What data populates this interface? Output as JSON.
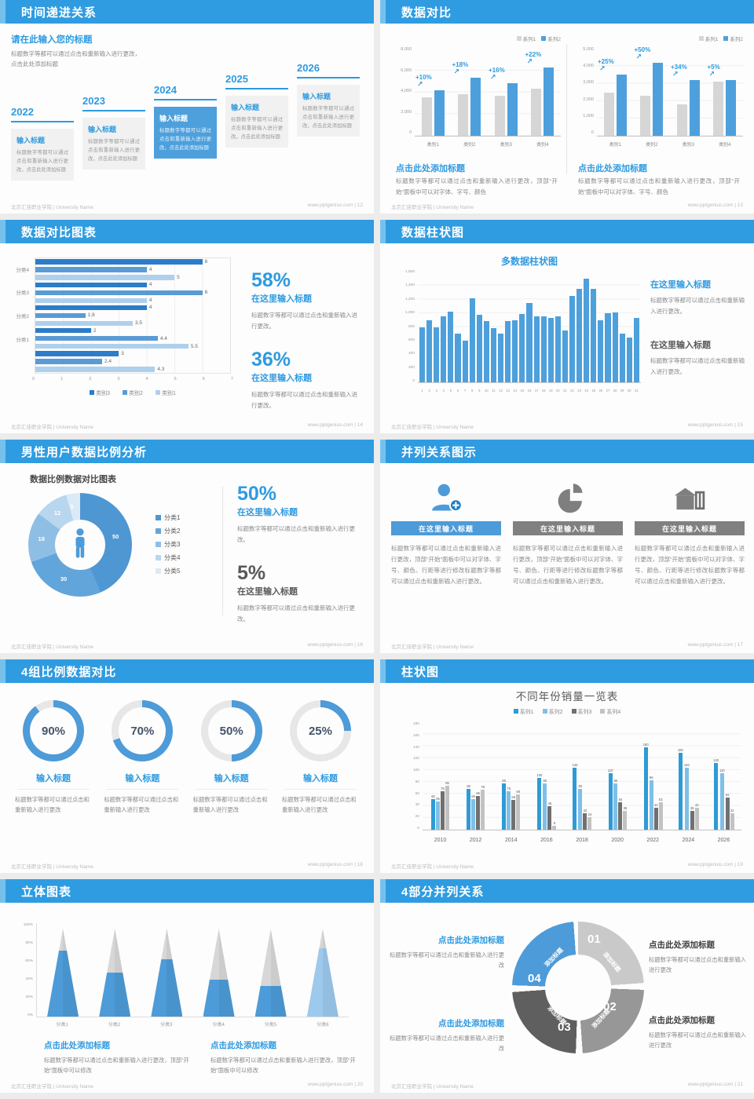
{
  "footer": {
    "left": "北京汇佳职业学院 | University Name",
    "url": "www.pptgenius.com",
    "sep": " | "
  },
  "colors": {
    "header_blue": "#2f9ce1",
    "accent_light": "#76c1ec",
    "chart_blue": "#4da0dc",
    "heading_blue": "#2e9ae0",
    "gray_bar": "#d6d6d6",
    "text_gray": "#8a8a8a",
    "text_dark": "#595959"
  },
  "slides": [
    {
      "page": "12",
      "title": "时间递进关系",
      "heading": "请在此输入您的标题",
      "desc": "标题数字等都可以通过点击和重新输入进行更改，点击此处添加标题",
      "years": [
        "2022",
        "2023",
        "2024",
        "2025",
        "2026"
      ],
      "item_title": "输入标题",
      "item_body": "标题数字等都可以通过点击和重新输入进行更改，点击此处添加标题"
    },
    {
      "page": "13",
      "title": "数据对比",
      "caption_heading": "点击此处添加标题",
      "caption_body": "标题数字等都可以通过点击和重新输入进行更改，顶部“开始”面板中可以对字体、字号、颜色"
    },
    {
      "page": "14",
      "title": "数据对比图表",
      "stats": [
        {
          "value": "58%",
          "heading": "在这里输入标题",
          "body": "标题数字等都可以通过点击和重新输入进行更改。",
          "tone": "blue"
        },
        {
          "value": "36%",
          "heading": "在这里输入标题",
          "body": "标题数字等都可以通过点击和重新输入进行更改。",
          "tone": "blue"
        }
      ]
    },
    {
      "page": "15",
      "title": "数据柱状图",
      "blocks": [
        {
          "heading": "在这里输入标题",
          "body": "标题数字等都可以通过点击和重新输入进行更改。",
          "tone": "blue"
        },
        {
          "heading": "在这里输入标题",
          "body": "标题数字等都可以通过点击和重新输入进行更改。",
          "tone": "gray"
        }
      ]
    },
    {
      "page": "16",
      "title": "男性用户数据比例分析",
      "chart_title": "数据比例数据对比图表",
      "stats": [
        {
          "value": "50%",
          "heading": "在这里输入标题",
          "body": "标题数字等都可以通过点击和重新输入进行更改。",
          "tone": "blue"
        },
        {
          "value": "5%",
          "heading": "在这里输入标题",
          "body": "标题数字等都可以通过点击和重新输入进行更改。",
          "tone": "gray"
        }
      ]
    },
    {
      "page": "17",
      "title": "并列关系图示",
      "card_heading": "在这里输入标题",
      "card_body": "标题数字等都可以通过点击和重新输入进行更改，顶部“开始”面板中可以对字体、字号、颜色、行距等进行修改标题数字等都可以通过点击和重新输入进行更改。",
      "icons": [
        "person-add",
        "pie-3d",
        "building"
      ]
    },
    {
      "page": "18",
      "title": "4组比例数据对比",
      "item_heading": "输入标题",
      "item_body": "标题数字等都可以通过点击和重新输入进行更改"
    },
    {
      "page": "19",
      "title": "柱状图"
    },
    {
      "page": "20",
      "title": "立体图表",
      "blocks": [
        {
          "heading": "点击此处添加标题",
          "body": "标题数字等都可以通过点击和重新输入进行更改，顶部“开始”面板中可以修改"
        },
        {
          "heading": "点击此处添加标题",
          "body": "标题数字等都可以通过点击和重新输入进行更改，顶部“开始”面板中可以修改"
        }
      ]
    },
    {
      "page": "21",
      "title": "4部分并列关系",
      "blocks": [
        {
          "heading": "点击此处添加标题",
          "body": "标题数字等都可以通过点击和重新输入进行更改",
          "tone": "blue",
          "align": "right"
        },
        {
          "heading": "点击此处添加标题",
          "body": "标题数字等都可以通过点击和重新输入进行更改",
          "tone": "blue",
          "align": "right"
        },
        {
          "heading": "点击此处添加标题",
          "body": "标题数字等都可以通过点击和重新输入进行更改",
          "tone": "dark",
          "align": "left"
        },
        {
          "heading": "点击此处添加标题",
          "body": "标题数字等都可以通过点击和重新输入进行更改",
          "tone": "dark",
          "align": "left"
        }
      ]
    }
  ],
  "chart_data": [
    {
      "slide": "13-left",
      "type": "bar",
      "categories": [
        "类别1",
        "类别2",
        "类别3",
        "类别4"
      ],
      "series": [
        {
          "name": "系列1",
          "color": "#d6d6d6",
          "values": [
            3500,
            3800,
            3700,
            4300
          ]
        },
        {
          "name": "系列2",
          "color": "#4da0dc",
          "values": [
            4200,
            5300,
            4800,
            6300
          ]
        }
      ],
      "annotations": [
        "+10%",
        "+18%",
        "+16%",
        "+22%"
      ],
      "ylim": [
        0,
        8000
      ],
      "yticks": [
        "8,000",
        "6,000",
        "4,000",
        "2,000",
        "0"
      ],
      "legend_position": "top-right",
      "grid": true
    },
    {
      "slide": "13-right",
      "type": "bar",
      "categories": [
        "类别1",
        "类别2",
        "类别3",
        "类别4"
      ],
      "series": [
        {
          "name": "系列1",
          "color": "#d6d6d6",
          "values": [
            2500,
            2300,
            1800,
            3100
          ]
        },
        {
          "name": "系列2",
          "color": "#4da0dc",
          "values": [
            3500,
            4200,
            3200,
            3200
          ]
        }
      ],
      "annotations": [
        "+25%",
        "+50%",
        "+34%",
        "+5%"
      ],
      "ylim": [
        0,
        5000
      ],
      "yticks": [
        "5,000",
        "4,000",
        "3,000",
        "2,000",
        "1,000",
        "0"
      ],
      "legend_position": "top-right",
      "grid": true
    },
    {
      "slide": "14",
      "type": "bar-horizontal",
      "categories": [
        "分类4",
        "分类3",
        "分类2",
        "分类1",
        ""
      ],
      "series": [
        {
          "name": "类别3",
          "color": "#2c7cc9",
          "values": [
            6,
            4,
            4,
            2,
            3
          ]
        },
        {
          "name": "类别2",
          "color": "#5b9bd5",
          "values": [
            4,
            6,
            1.8,
            4.4,
            2.4
          ]
        },
        {
          "name": "类别1",
          "color": "#afd0ec",
          "values": [
            5,
            4,
            3.5,
            5.5,
            4.3
          ]
        }
      ],
      "xlim": [
        0,
        7
      ],
      "xticks": [
        "0",
        "1",
        "2",
        "3",
        "4",
        "5",
        "6",
        "7"
      ],
      "legend_position": "bottom",
      "grid": true
    },
    {
      "slide": "15",
      "type": "bar",
      "title": "多数据柱状图",
      "categories": [
        "1",
        "2",
        "3",
        "4",
        "5",
        "6",
        "7",
        "8",
        "9",
        "10",
        "11",
        "12",
        "13",
        "14",
        "15",
        "16",
        "17",
        "18",
        "19",
        "20",
        "21",
        "22",
        "23",
        "24",
        "25",
        "26",
        "27",
        "28",
        "29",
        "30",
        "31"
      ],
      "values": [
        800,
        900,
        800,
        950,
        1020,
        700,
        600,
        1210,
        980,
        890,
        780,
        700,
        890,
        900,
        990,
        1150,
        950,
        950,
        930,
        950,
        750,
        1250,
        1350,
        1500,
        1350,
        900,
        1000,
        1010,
        700,
        650,
        930
      ],
      "color": "#4da0dc",
      "ylim": [
        0,
        1600
      ],
      "yticks": [
        "1,600",
        "1,400",
        "1,200",
        "1,000",
        "800",
        "600",
        "400",
        "200",
        "0"
      ],
      "grid": true
    },
    {
      "slide": "16",
      "type": "pie",
      "title": "数据比例数据对比图表",
      "labels": [
        "分类1",
        "分类2",
        "分类3",
        "分类4",
        "分类5"
      ],
      "values": [
        50,
        30,
        18,
        12,
        5
      ],
      "colors": [
        "#4e97d3",
        "#62a5db",
        "#8fbee5",
        "#b9d6ef",
        "#dceaf7"
      ],
      "donut": true,
      "center_icon": "male-person-icon",
      "legend_position": "right"
    },
    {
      "slide": "18",
      "type": "progress-rings",
      "values_percent": [
        90,
        70,
        50,
        25
      ],
      "ring_color": "#4d9bd8",
      "track_color": "#e7e7e7"
    },
    {
      "slide": "19",
      "type": "bar",
      "title": "不同年份销量一览表",
      "categories": [
        "2010",
        "2012",
        "2014",
        "2016",
        "2018",
        "2020",
        "2022",
        "2024",
        "2026"
      ],
      "series": [
        {
          "name": "系列1",
          "color": "#2e9bd6",
          "values": [
            60,
            80,
            90,
            100,
            120,
            110,
            160,
            150,
            130
          ]
        },
        {
          "name": "系列2",
          "color": "#7fbfe8",
          "values": [
            55,
            60,
            75,
            90,
            80,
            90,
            96,
            120,
            110
          ]
        },
        {
          "name": "系列3",
          "color": "#707070",
          "values": [
            75,
            65,
            58,
            46,
            32,
            54,
            42,
            36,
            62
          ]
        },
        {
          "name": "系列4",
          "color": "#c2c2c2",
          "values": [
            85,
            78,
            68,
            8,
            24,
            36,
            53,
            42,
            32
          ]
        }
      ],
      "ylim": [
        0,
        180
      ],
      "yticks": [
        "180",
        "160",
        "140",
        "120",
        "100",
        "80",
        "60",
        "40",
        "20",
        "0"
      ],
      "legend_position": "top",
      "grid": true
    },
    {
      "slide": "20",
      "type": "cone",
      "categories": [
        "分类1",
        "分类2",
        "分类3",
        "分类4",
        "分类5",
        "分类6"
      ],
      "values_percent": [
        75,
        50,
        65,
        42,
        35,
        78
      ],
      "fill_colors": [
        "#4d9bd8",
        "#4d9bd8",
        "#4d9bd8",
        "#4d9bd8",
        "#4d9bd8",
        "#9cc9ec"
      ],
      "yticks": [
        "100%",
        "80%",
        "60%",
        "40%",
        "20%",
        "0%"
      ]
    },
    {
      "slide": "21",
      "type": "diagram-circle",
      "segments": [
        {
          "num": "01",
          "label": "添加标题",
          "color": "#c9c9c9"
        },
        {
          "num": "02",
          "label": "添加标题",
          "color": "#979797"
        },
        {
          "num": "03",
          "label": "添加标题",
          "color": "#5f5f5f"
        },
        {
          "num": "04",
          "label": "添加标题",
          "color": "#4d9bd8"
        }
      ]
    }
  ]
}
